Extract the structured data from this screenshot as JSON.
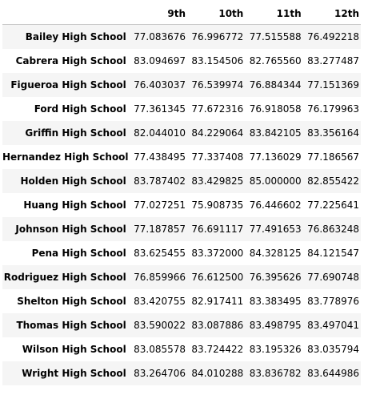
{
  "table": {
    "columns": [
      "9th",
      "10th",
      "11th",
      "12th"
    ],
    "rows": [
      {
        "school": "Bailey High School",
        "values": [
          "77.083676",
          "76.996772",
          "77.515588",
          "76.492218"
        ]
      },
      {
        "school": "Cabrera High School",
        "values": [
          "83.094697",
          "83.154506",
          "82.765560",
          "83.277487"
        ]
      },
      {
        "school": "Figueroa High School",
        "values": [
          "76.403037",
          "76.539974",
          "76.884344",
          "77.151369"
        ]
      },
      {
        "school": "Ford High School",
        "values": [
          "77.361345",
          "77.672316",
          "76.918058",
          "76.179963"
        ]
      },
      {
        "school": "Griffin High School",
        "values": [
          "82.044010",
          "84.229064",
          "83.842105",
          "83.356164"
        ]
      },
      {
        "school": "Hernandez High School",
        "values": [
          "77.438495",
          "77.337408",
          "77.136029",
          "77.186567"
        ]
      },
      {
        "school": "Holden High School",
        "values": [
          "83.787402",
          "83.429825",
          "85.000000",
          "82.855422"
        ]
      },
      {
        "school": "Huang High School",
        "values": [
          "77.027251",
          "75.908735",
          "76.446602",
          "77.225641"
        ]
      },
      {
        "school": "Johnson High School",
        "values": [
          "77.187857",
          "76.691117",
          "77.491653",
          "76.863248"
        ]
      },
      {
        "school": "Pena High School",
        "values": [
          "83.625455",
          "83.372000",
          "84.328125",
          "84.121547"
        ]
      },
      {
        "school": "Rodriguez High School",
        "values": [
          "76.859966",
          "76.612500",
          "76.395626",
          "77.690748"
        ]
      },
      {
        "school": "Shelton High School",
        "values": [
          "83.420755",
          "82.917411",
          "83.383495",
          "83.778976"
        ]
      },
      {
        "school": "Thomas High School",
        "values": [
          "83.590022",
          "83.087886",
          "83.498795",
          "83.497041"
        ]
      },
      {
        "school": "Wilson High School",
        "values": [
          "83.085578",
          "83.724422",
          "83.195326",
          "83.035794"
        ]
      },
      {
        "school": "Wright High School",
        "values": [
          "83.264706",
          "84.010288",
          "83.836782",
          "83.644986"
        ]
      }
    ]
  }
}
